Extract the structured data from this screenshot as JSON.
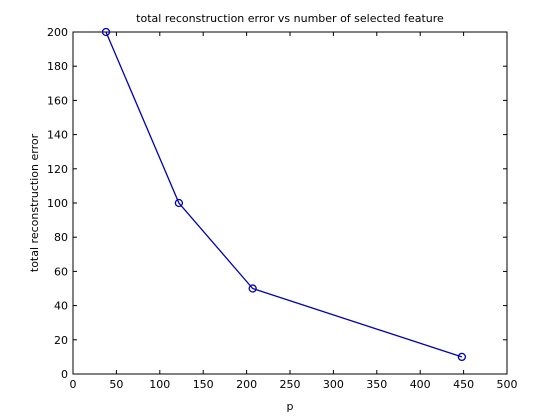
{
  "chart_data": {
    "type": "line",
    "title": "total reconstruction error vs number of selected feature",
    "xlabel": "p",
    "ylabel": "total reconstruction error",
    "xlim": [
      0,
      500
    ],
    "ylim": [
      0,
      200
    ],
    "xticks": [
      0,
      50,
      100,
      150,
      200,
      250,
      300,
      350,
      400,
      450,
      500
    ],
    "yticks": [
      0,
      20,
      40,
      60,
      80,
      100,
      120,
      140,
      160,
      180,
      200
    ],
    "grid": false,
    "series": [
      {
        "x": [
          38,
          122,
          207,
          448
        ],
        "y": [
          200,
          100,
          50,
          10
        ],
        "color": "#0000b4",
        "marker": "circle"
      }
    ]
  }
}
